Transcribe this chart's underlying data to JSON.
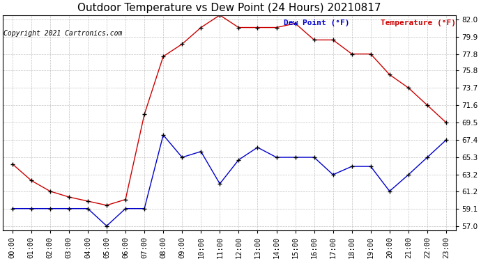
{
  "title": "Outdoor Temperature vs Dew Point (24 Hours) 20210817",
  "copyright": "Copyright 2021 Cartronics.com",
  "legend_dew": "Dew Point (°F)",
  "legend_temp": "Temperature (°F)",
  "x_labels": [
    "00:00",
    "01:00",
    "02:00",
    "03:00",
    "04:00",
    "05:00",
    "06:00",
    "07:00",
    "08:00",
    "09:00",
    "10:00",
    "11:00",
    "12:00",
    "13:00",
    "14:00",
    "15:00",
    "16:00",
    "17:00",
    "18:00",
    "19:00",
    "20:00",
    "21:00",
    "22:00",
    "23:00"
  ],
  "temperature": [
    64.5,
    62.5,
    61.2,
    60.5,
    60.0,
    59.5,
    60.2,
    70.5,
    77.5,
    79.0,
    81.0,
    82.5,
    81.0,
    81.0,
    81.0,
    81.5,
    79.5,
    79.5,
    77.8,
    77.8,
    75.3,
    73.7,
    71.6,
    69.5
  ],
  "dew_point": [
    59.1,
    59.1,
    59.1,
    59.1,
    59.1,
    57.0,
    59.1,
    59.1,
    68.0,
    65.3,
    66.0,
    62.1,
    65.0,
    66.5,
    65.3,
    65.3,
    65.3,
    63.2,
    64.2,
    64.2,
    61.2,
    63.2,
    65.3,
    67.4
  ],
  "ylim": [
    57.0,
    82.0
  ],
  "yticks": [
    57.0,
    59.1,
    61.2,
    63.2,
    65.3,
    67.4,
    69.5,
    71.6,
    73.7,
    75.8,
    77.8,
    79.9,
    82.0
  ],
  "temp_color": "#cc0000",
  "dew_color": "#0000cc",
  "bg_color": "#ffffff",
  "grid_color": "#aaaaaa",
  "title_fontsize": 11,
  "axis_fontsize": 7.5,
  "copyright_fontsize": 7
}
